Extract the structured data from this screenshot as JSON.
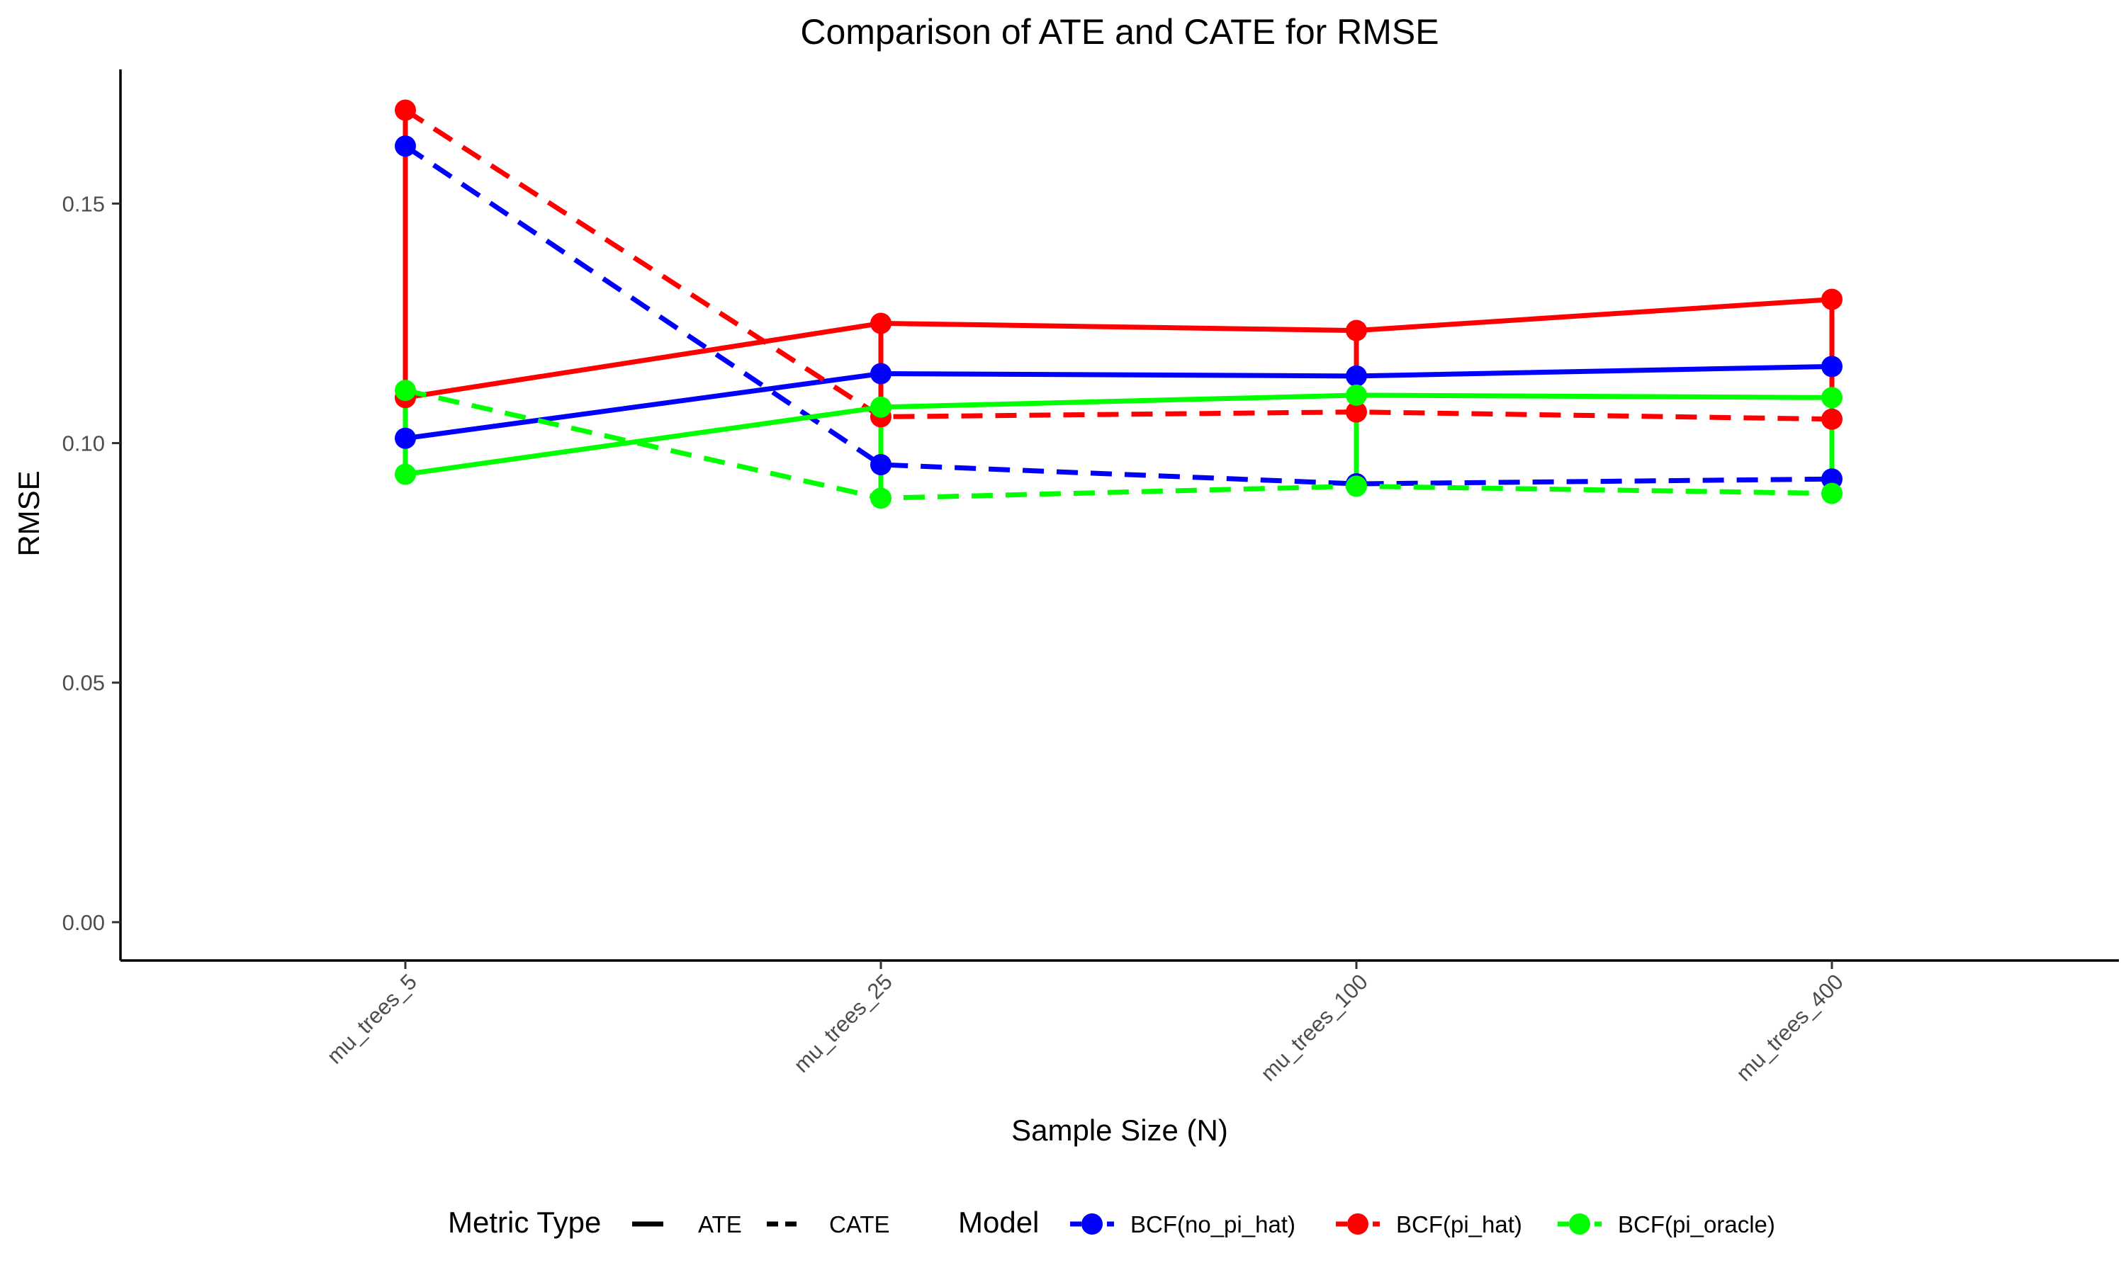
{
  "chart_data": {
    "type": "line",
    "title": "Comparison of ATE and CATE for RMSE",
    "xlabel": "Sample Size (N)",
    "ylabel": "RMSE",
    "categories": [
      "mu_trees_5",
      "mu_trees_25",
      "mu_trees_100",
      "mu_trees_400"
    ],
    "ylim": [
      -0.008,
      0.178
    ],
    "yticks": [
      0.0,
      0.05,
      0.1,
      0.15
    ],
    "ytick_labels": [
      "0.00",
      "0.05",
      "0.10",
      "0.15"
    ],
    "grid": false,
    "legend_position": "bottom",
    "legend": {
      "linetype_title": "Metric Type",
      "linetype_items": [
        {
          "label": "ATE",
          "dash": "solid"
        },
        {
          "label": "CATE",
          "dash": "dashed"
        }
      ],
      "color_title": "Model"
    },
    "series": [
      {
        "name": "BCF(no_pi_hat)",
        "metric": "ATE",
        "color": "#0000ff",
        "values": [
          0.101,
          0.1145,
          0.114,
          0.116
        ]
      },
      {
        "name": "BCF(no_pi_hat)",
        "metric": "CATE",
        "color": "#0000ff",
        "values": [
          0.162,
          0.0955,
          0.0915,
          0.0925
        ]
      },
      {
        "name": "BCF(pi_hat)",
        "metric": "ATE",
        "color": "#ff0000",
        "values": [
          0.1095,
          0.125,
          0.1235,
          0.13
        ]
      },
      {
        "name": "BCF(pi_hat)",
        "metric": "CATE",
        "color": "#ff0000",
        "values": [
          0.1695,
          0.1055,
          0.1065,
          0.105
        ]
      },
      {
        "name": "BCF(pi_oracle)",
        "metric": "ATE",
        "color": "#00ff00",
        "values": [
          0.0935,
          0.1075,
          0.11,
          0.1095
        ]
      },
      {
        "name": "BCF(pi_oracle)",
        "metric": "CATE",
        "color": "#00ff00",
        "values": [
          0.111,
          0.0885,
          0.091,
          0.0895
        ]
      }
    ],
    "models": [
      {
        "name": "BCF(no_pi_hat)",
        "color": "#0000ff"
      },
      {
        "name": "BCF(pi_hat)",
        "color": "#ff0000"
      },
      {
        "name": "BCF(pi_oracle)",
        "color": "#00ff00"
      }
    ]
  }
}
